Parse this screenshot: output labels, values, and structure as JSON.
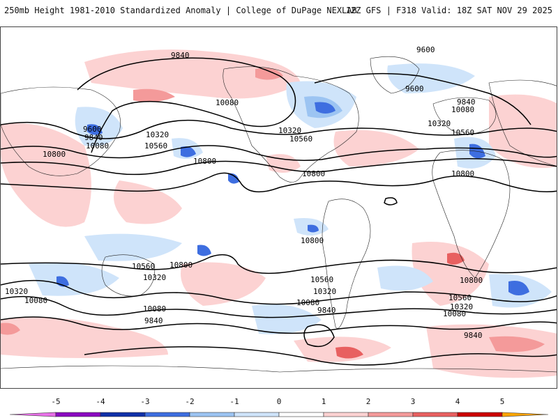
{
  "header": {
    "title": "250mb Height 1981-2010 Standardized Anomaly | College of DuPage NEXLAB",
    "run_info": "12Z GFS | F318 Valid: 18Z SAT NOV 29 2025"
  },
  "contour_labels": {
    "nh_9840": "9840",
    "nh_9600_east": "9600",
    "nh_9600_atl": "9600",
    "nh_10080_pac": "10080",
    "nh_9600_asia": "9600",
    "nh_9840_asia": "9840",
    "nh_10080_asia": "10080",
    "nh_10320_pac": "10320",
    "nh_10560_pac": "10560",
    "nh_10800_asia": "10800",
    "nh_10800_pac": "10800",
    "nh_10320_us": "10320",
    "nh_10560_us": "10560",
    "nh_10800_gulf": "10800",
    "nh_9840_eur": "9840",
    "nh_10080_eur": "10080",
    "nh_10320_eur": "10320",
    "nh_10560_eur": "10560",
    "nh_10800_afr": "10800",
    "eq_10800": "10800",
    "sh_10560_aus": "10560",
    "sh_10800_aus": "10800",
    "sh_10320_aus": "10320",
    "sh_10320_west": "10320",
    "sh_10080_west": "10080",
    "sh_10560_pac": "10560",
    "sh_10320_pac": "10320",
    "sh_10080_pac": "10080",
    "sh_9840_pac": "9840",
    "sh_10080_nz": "10080",
    "sh_9840_nz": "9840",
    "sh_10800_atl": "10800",
    "sh_10560_atl": "10560",
    "sh_10320_atl": "10320",
    "sh_10080_atl": "10080",
    "sh_9840_atl": "9840"
  },
  "colorbar": {
    "ticks": [
      "-5",
      "-4",
      "-3",
      "-2",
      "-1",
      "0",
      "1",
      "2",
      "3",
      "4",
      "5"
    ],
    "colors": [
      "#e870e8",
      "#8a0ac0",
      "#1030a8",
      "#3e6ee0",
      "#9cc4f2",
      "#cfe4fa",
      "#ffffff",
      "#fcd2d2",
      "#f49a9a",
      "#e86060",
      "#cc0000",
      "#ffa500"
    ]
  }
}
